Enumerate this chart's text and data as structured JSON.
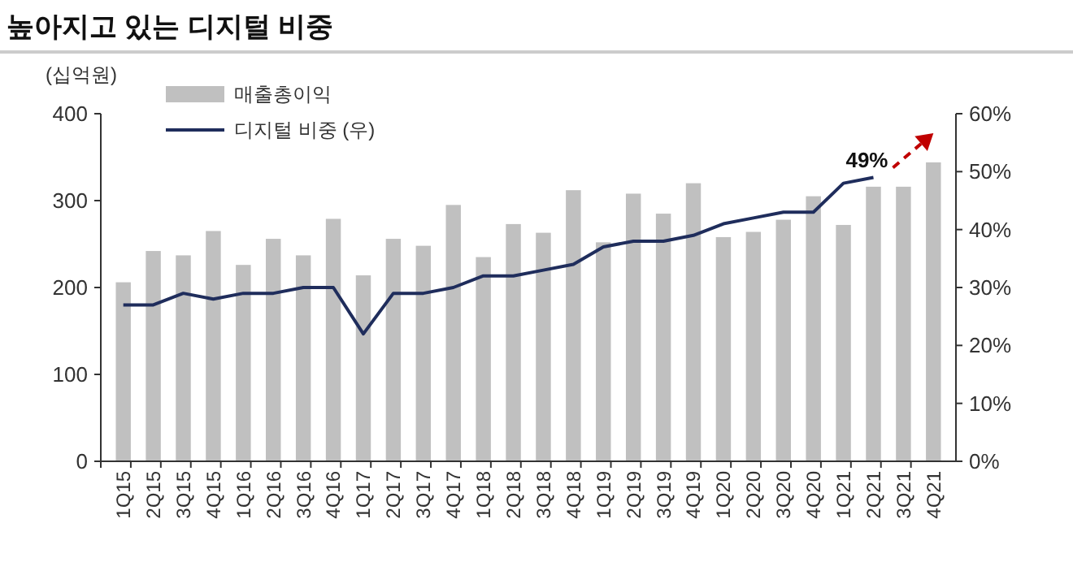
{
  "chart_data": {
    "type": "bar",
    "title": "높아지고 있는 디지털 비중",
    "ylabel": "(십억원)",
    "categories": [
      "1Q15",
      "2Q15",
      "3Q15",
      "4Q15",
      "1Q16",
      "2Q16",
      "3Q16",
      "4Q16",
      "1Q17",
      "2Q17",
      "3Q17",
      "4Q17",
      "1Q18",
      "2Q18",
      "3Q18",
      "4Q18",
      "1Q19",
      "2Q19",
      "3Q19",
      "4Q19",
      "1Q20",
      "2Q20",
      "3Q20",
      "4Q20",
      "1Q21",
      "2Q21",
      "3Q21",
      "4Q21"
    ],
    "series": [
      {
        "name": "매출총이익",
        "color": "#c0c0c0",
        "values": [
          206,
          242,
          237,
          265,
          226,
          256,
          237,
          279,
          214,
          256,
          248,
          295,
          235,
          273,
          263,
          312,
          252,
          308,
          285,
          320,
          258,
          264,
          278,
          305,
          272,
          316,
          316,
          344
        ]
      },
      {
        "name": "디지털 비중 (우)",
        "type": "line",
        "axis": "y2",
        "color": "#1f2d5c",
        "values": [
          27,
          27,
          29,
          28,
          29,
          29,
          30,
          30,
          22,
          29,
          29,
          30,
          32,
          32,
          33,
          34,
          37,
          38,
          38,
          39,
          41,
          42,
          43,
          43,
          48,
          49,
          null,
          null
        ]
      }
    ],
    "ylim": [
      0,
      400
    ],
    "yticks": [
      0,
      100,
      200,
      300,
      400
    ],
    "y2lim": [
      0,
      60
    ],
    "y2ticks": [
      {
        "value": 0,
        "label": "0%"
      },
      {
        "value": 10,
        "label": "10%"
      },
      {
        "value": 20,
        "label": "20%"
      },
      {
        "value": 30,
        "label": "30%"
      },
      {
        "value": 40,
        "label": "40%"
      },
      {
        "value": 50,
        "label": "50%"
      },
      {
        "value": 60,
        "label": "60%"
      }
    ],
    "annotations": [
      "49%"
    ],
    "legend": "top left",
    "grid": false
  }
}
